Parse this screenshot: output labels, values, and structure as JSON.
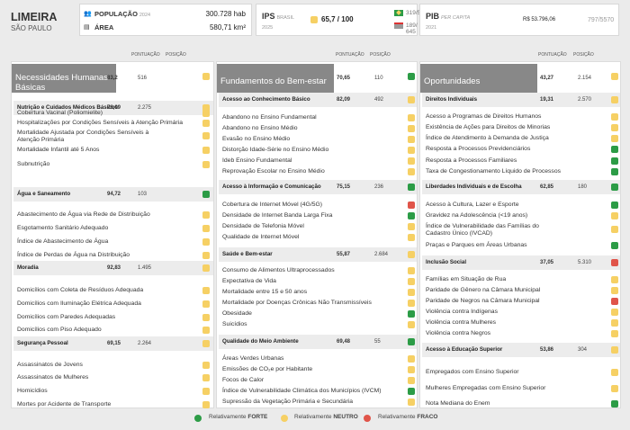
{
  "city": {
    "name": "LIMEIRA",
    "state": "SÃO PAULO"
  },
  "population": {
    "label": "POPULAÇÃO",
    "year": "2024",
    "value": "300.728 hab"
  },
  "area": {
    "label": "ÁREA",
    "value": "580,71 km²"
  },
  "ips": {
    "label": "IPS",
    "sublabel": "BRASIL",
    "year": "2025",
    "score": "65,7 / 100",
    "rank_country": "319",
    "rank_country_total": "/5570",
    "rank_state": "189",
    "rank_state_total": "/ 645"
  },
  "pib": {
    "label": "PIB",
    "sublabel": "PER CAPITA",
    "year": "2021",
    "value": "R$ 53.796,06",
    "rank": "797",
    "rank_total": "/5570"
  },
  "headers": {
    "score": "PONTUAÇÃO",
    "position": "POSIÇÃO"
  },
  "legend": {
    "strong_prefix": "Relativamente ",
    "strong": "FORTE",
    "neutral_prefix": "Relativamente ",
    "neutral": "NEUTRO",
    "weak_prefix": "Relativamente ",
    "weak": "FRACO"
  },
  "colors": {
    "strong": "#2c9c46",
    "neutral": "#f6d064",
    "weak": "#e05449",
    "title_bg": "#888888"
  },
  "panels": [
    {
      "title": "Necessidades Humanas Básicas",
      "score": "83,2",
      "position": "516",
      "status": "y",
      "sections": [
        {
          "name": "Nutrição e Cuidados Médicos Básicos",
          "score": "76,09",
          "position": "2.275",
          "status": "y",
          "items": [
            {
              "label": "Cobertura Vacinal (Poliomielite)",
              "status": "y"
            },
            {
              "label": "Hospitalizações por Condições Sensíveis à Atenção Primária",
              "status": "y"
            },
            {
              "label": "Mortalidade Ajustada por Condições Sensíveis à Atenção Primária",
              "status": "y"
            },
            {
              "label": "Mortalidade Infantil até 5 Anos",
              "status": "y"
            },
            {
              "label": "Subnutrição",
              "status": "y"
            }
          ]
        },
        {
          "name": "Água e Saneamento",
          "score": "94,72",
          "position": "103",
          "status": "g",
          "items": [
            {
              "label": "Abastecimento de Água via Rede de Distribuição",
              "status": "y"
            },
            {
              "label": "Esgotamento Sanitário Adequado",
              "status": "y"
            },
            {
              "label": "Índice de Abastecimento de Água",
              "status": "y"
            },
            {
              "label": "Índice de Perdas de Água na Distribuição",
              "status": "y"
            }
          ]
        },
        {
          "name": "Moradia",
          "score": "92,83",
          "position": "1.495",
          "status": "y",
          "items": [
            {
              "label": "Domicílios com Coleta de Resíduos Adequada",
              "status": "y"
            },
            {
              "label": "Domicílios com Iluminação Elétrica Adequada",
              "status": "y"
            },
            {
              "label": "Domicílios com Paredes Adequadas",
              "status": "y"
            },
            {
              "label": "Domicílios com Piso Adequado",
              "status": "y"
            }
          ]
        },
        {
          "name": "Segurança Pessoal",
          "score": "69,15",
          "position": "2.264",
          "status": "y",
          "items": [
            {
              "label": "Assassinatos de Jovens",
              "status": "y"
            },
            {
              "label": "Assassinatos de Mulheres",
              "status": "y"
            },
            {
              "label": "Homicídios",
              "status": "y"
            },
            {
              "label": "Mortes por Acidente de Transporte",
              "status": "y"
            }
          ]
        }
      ]
    },
    {
      "title": "Fundamentos do Bem-estar",
      "score": "70,65",
      "position": "110",
      "status": "g",
      "sections": [
        {
          "name": "Acesso ao Conhecimento Básico",
          "score": "82,09",
          "position": "492",
          "status": "y",
          "items": [
            {
              "label": "Abandono no Ensino Fundamental",
              "status": "y"
            },
            {
              "label": "Abandono no Ensino Médio",
              "status": "y"
            },
            {
              "label": "Evasão no Ensino Médio",
              "status": "y"
            },
            {
              "label": "Distorção Idade-Série no Ensino Médio",
              "status": "y"
            },
            {
              "label": "Ideb Ensino Fundamental",
              "status": "y"
            },
            {
              "label": "Reprovação Escolar no Ensino Médio",
              "status": "y"
            }
          ]
        },
        {
          "name": "Acesso à Informação e Comunicação",
          "score": "75,15",
          "position": "236",
          "status": "g",
          "items": [
            {
              "label": "Cobertura de Internet Móvel (4G/5G)",
              "status": "r"
            },
            {
              "label": "Densidade de Internet Banda Larga Fixa",
              "status": "g"
            },
            {
              "label": "Densidade de Telefonia Móvel",
              "status": "y"
            },
            {
              "label": "Qualidade de Internet Móvel",
              "status": "y"
            }
          ]
        },
        {
          "name": "Saúde e Bem-estar",
          "score": "55,87",
          "position": "2.684",
          "status": "y",
          "items": [
            {
              "label": "Consumo de Alimentos Ultraprocessados",
              "status": "y"
            },
            {
              "label": "Expectativa de Vida",
              "status": "y"
            },
            {
              "label": "Mortalidade entre 15 e 50 anos",
              "status": "y"
            },
            {
              "label": "Mortalidade por Doenças Crônicas Não Transmissíveis",
              "status": "y"
            },
            {
              "label": "Obesidade",
              "status": "g"
            },
            {
              "label": "Suicídios",
              "status": "y"
            }
          ]
        },
        {
          "name": "Qualidade do Meio Ambiente",
          "score": "69,48",
          "position": "55",
          "status": "g",
          "items": [
            {
              "label": "Áreas Verdes Urbanas",
              "status": "y"
            },
            {
              "label": "Emissões de CO₂e por Habitante",
              "status": "y"
            },
            {
              "label": "Focos de Calor",
              "status": "y"
            },
            {
              "label": "Índice de Vulnerabilidade Climática dos Municípios (IVCM)",
              "status": "g"
            },
            {
              "label": "Supressão da Vegetação Primária e Secundária",
              "status": "y"
            }
          ]
        }
      ]
    },
    {
      "title": "Oportunidades",
      "score": "43,27",
      "position": "2.154",
      "status": "y",
      "sections": [
        {
          "name": "Direitos Individuais",
          "score": "19,31",
          "position": "2.570",
          "status": "y",
          "items": [
            {
              "label": "Acesso a Programas de Direitos Humanos",
              "status": "y"
            },
            {
              "label": "Existência de Ações para Direitos de Minorias",
              "status": "y"
            },
            {
              "label": "Índice de Atendimento à Demanda de Justiça",
              "status": "y"
            },
            {
              "label": "Resposta a Processos Previdenciários",
              "status": "g"
            },
            {
              "label": "Resposta a Processos Familiares",
              "status": "g"
            },
            {
              "label": "Taxa de Congestionamento Líquido de Processos",
              "status": "g"
            }
          ]
        },
        {
          "name": "Liberdades Individuais e de Escolha",
          "score": "62,85",
          "position": "180",
          "status": "g",
          "items": [
            {
              "label": "Acesso à Cultura, Lazer e Esporte",
              "status": "g"
            },
            {
              "label": "Gravidez na Adolescência (<19 anos)",
              "status": "y"
            },
            {
              "label": "Índice de Vulnerabilidade das Famílias do Cadastro Único (IVCAD)",
              "status": "y"
            },
            {
              "label": "Praças e Parques em Áreas Urbanas",
              "status": "g"
            }
          ]
        },
        {
          "name": "Inclusão Social",
          "score": "37,05",
          "position": "5.310",
          "status": "r",
          "items": [
            {
              "label": "Famílias em Situação de Rua",
              "status": "y"
            },
            {
              "label": "Paridade de Gênero na Câmara Municipal",
              "status": "y"
            },
            {
              "label": "Paridade de Negros na Câmara Municipal",
              "status": "r"
            },
            {
              "label": "Violência contra Indígenas",
              "status": "y"
            },
            {
              "label": "Violência contra Mulheres",
              "status": "y"
            },
            {
              "label": "Violência contra Negros",
              "status": "y"
            }
          ]
        },
        {
          "name": "Acesso à Educação Superior",
          "score": "53,86",
          "position": "304",
          "status": "y",
          "items": [
            {
              "label": "Empregados com Ensino Superior",
              "status": "y"
            },
            {
              "label": "Mulheres Empregadas com Ensino Superior",
              "status": "y"
            },
            {
              "label": "Nota Mediana do Enem",
              "status": "g"
            }
          ]
        }
      ]
    }
  ]
}
